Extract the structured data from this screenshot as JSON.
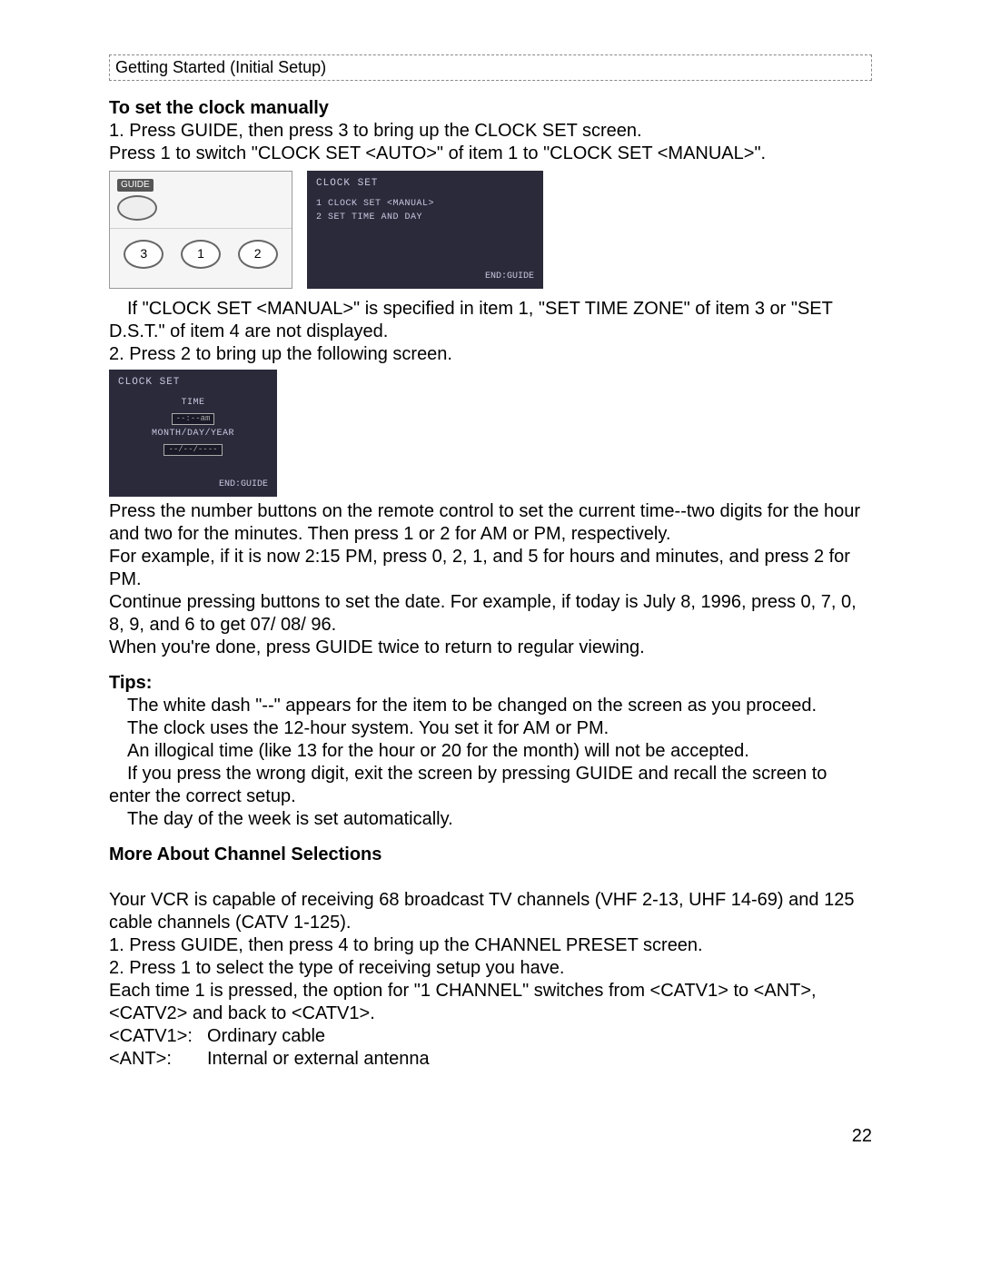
{
  "header": "Getting Started (Initial Setup)",
  "section1": {
    "title": "To set the clock manually",
    "step1a": "1. Press GUIDE, then press 3 to bring up the CLOCK SET screen.",
    "step1b": "Press 1 to switch \"CLOCK SET <AUTO>\" of item 1 to \"CLOCK SET <MANUAL>\".",
    "remote_guide": "GUIDE",
    "remote_buttons": [
      "3",
      "1",
      "2"
    ],
    "screen1": {
      "title": "CLOCK SET",
      "line1": "1 CLOCK SET <MANUAL>",
      "line2": "2 SET TIME AND DAY",
      "end": "END:GUIDE"
    },
    "note1": "If \"CLOCK SET <MANUAL>\" is specified in item 1, \"SET TIME ZONE\" of item 3 or \"SET D.S.T.\" of item 4 are not displayed.",
    "step2": "2. Press 2 to bring up the following screen.",
    "screen2": {
      "title": "CLOCK SET",
      "label1": "TIME",
      "box1": "--:--am",
      "label2": "MONTH/DAY/YEAR",
      "box2": "--/--/----",
      "end": "END:GUIDE"
    },
    "body1": "Press the number buttons on the remote control to set the current time--two digits for the hour and two for the minutes. Then press 1 or 2 for AM or PM, respectively.",
    "body2": "For example, if it is now 2:15 PM, press 0, 2, 1, and 5 for hours and minutes, and press 2 for PM.",
    "body3": "Continue pressing buttons to set the date. For example, if today is July 8, 1996, press 0, 7, 0, 8, 9, and 6 to get 07/ 08/ 96.",
    "body4": "When you're done, press GUIDE twice to return to regular viewing."
  },
  "tips": {
    "title": "Tips:",
    "t1": "The white dash \"--\" appears for the item to be changed on the screen as you proceed.",
    "t2": "The clock uses the 12-hour system.  You set it for AM or PM.",
    "t3": "An illogical time (like 13 for the hour or 20 for the month) will not be accepted.",
    "t4": "If you press the wrong digit, exit the screen by pressing GUIDE and recall the screen to enter the correct setup.",
    "t5": "The day of the week is set automatically."
  },
  "section2": {
    "title": "More About Channel Selections",
    "p1": "Your VCR is capable of receiving 68 broadcast TV channels (VHF 2-13, UHF 14-69) and 125 cable channels (CATV 1-125).",
    "s1": "1. Press GUIDE, then press 4 to bring up the CHANNEL PRESET screen.",
    "s2": "2. Press 1 to select the type of receiving setup you have.",
    "p2": "Each time 1 is pressed, the option for \"1 CHANNEL\" switches from <CATV1> to <ANT>, <CATV2> and back to <CATV1>.",
    "def1_term": "<CATV1>:",
    "def1_desc": "Ordinary cable",
    "def2_term": "<ANT>:",
    "def2_desc": "Internal or external antenna"
  },
  "page_number": "22"
}
